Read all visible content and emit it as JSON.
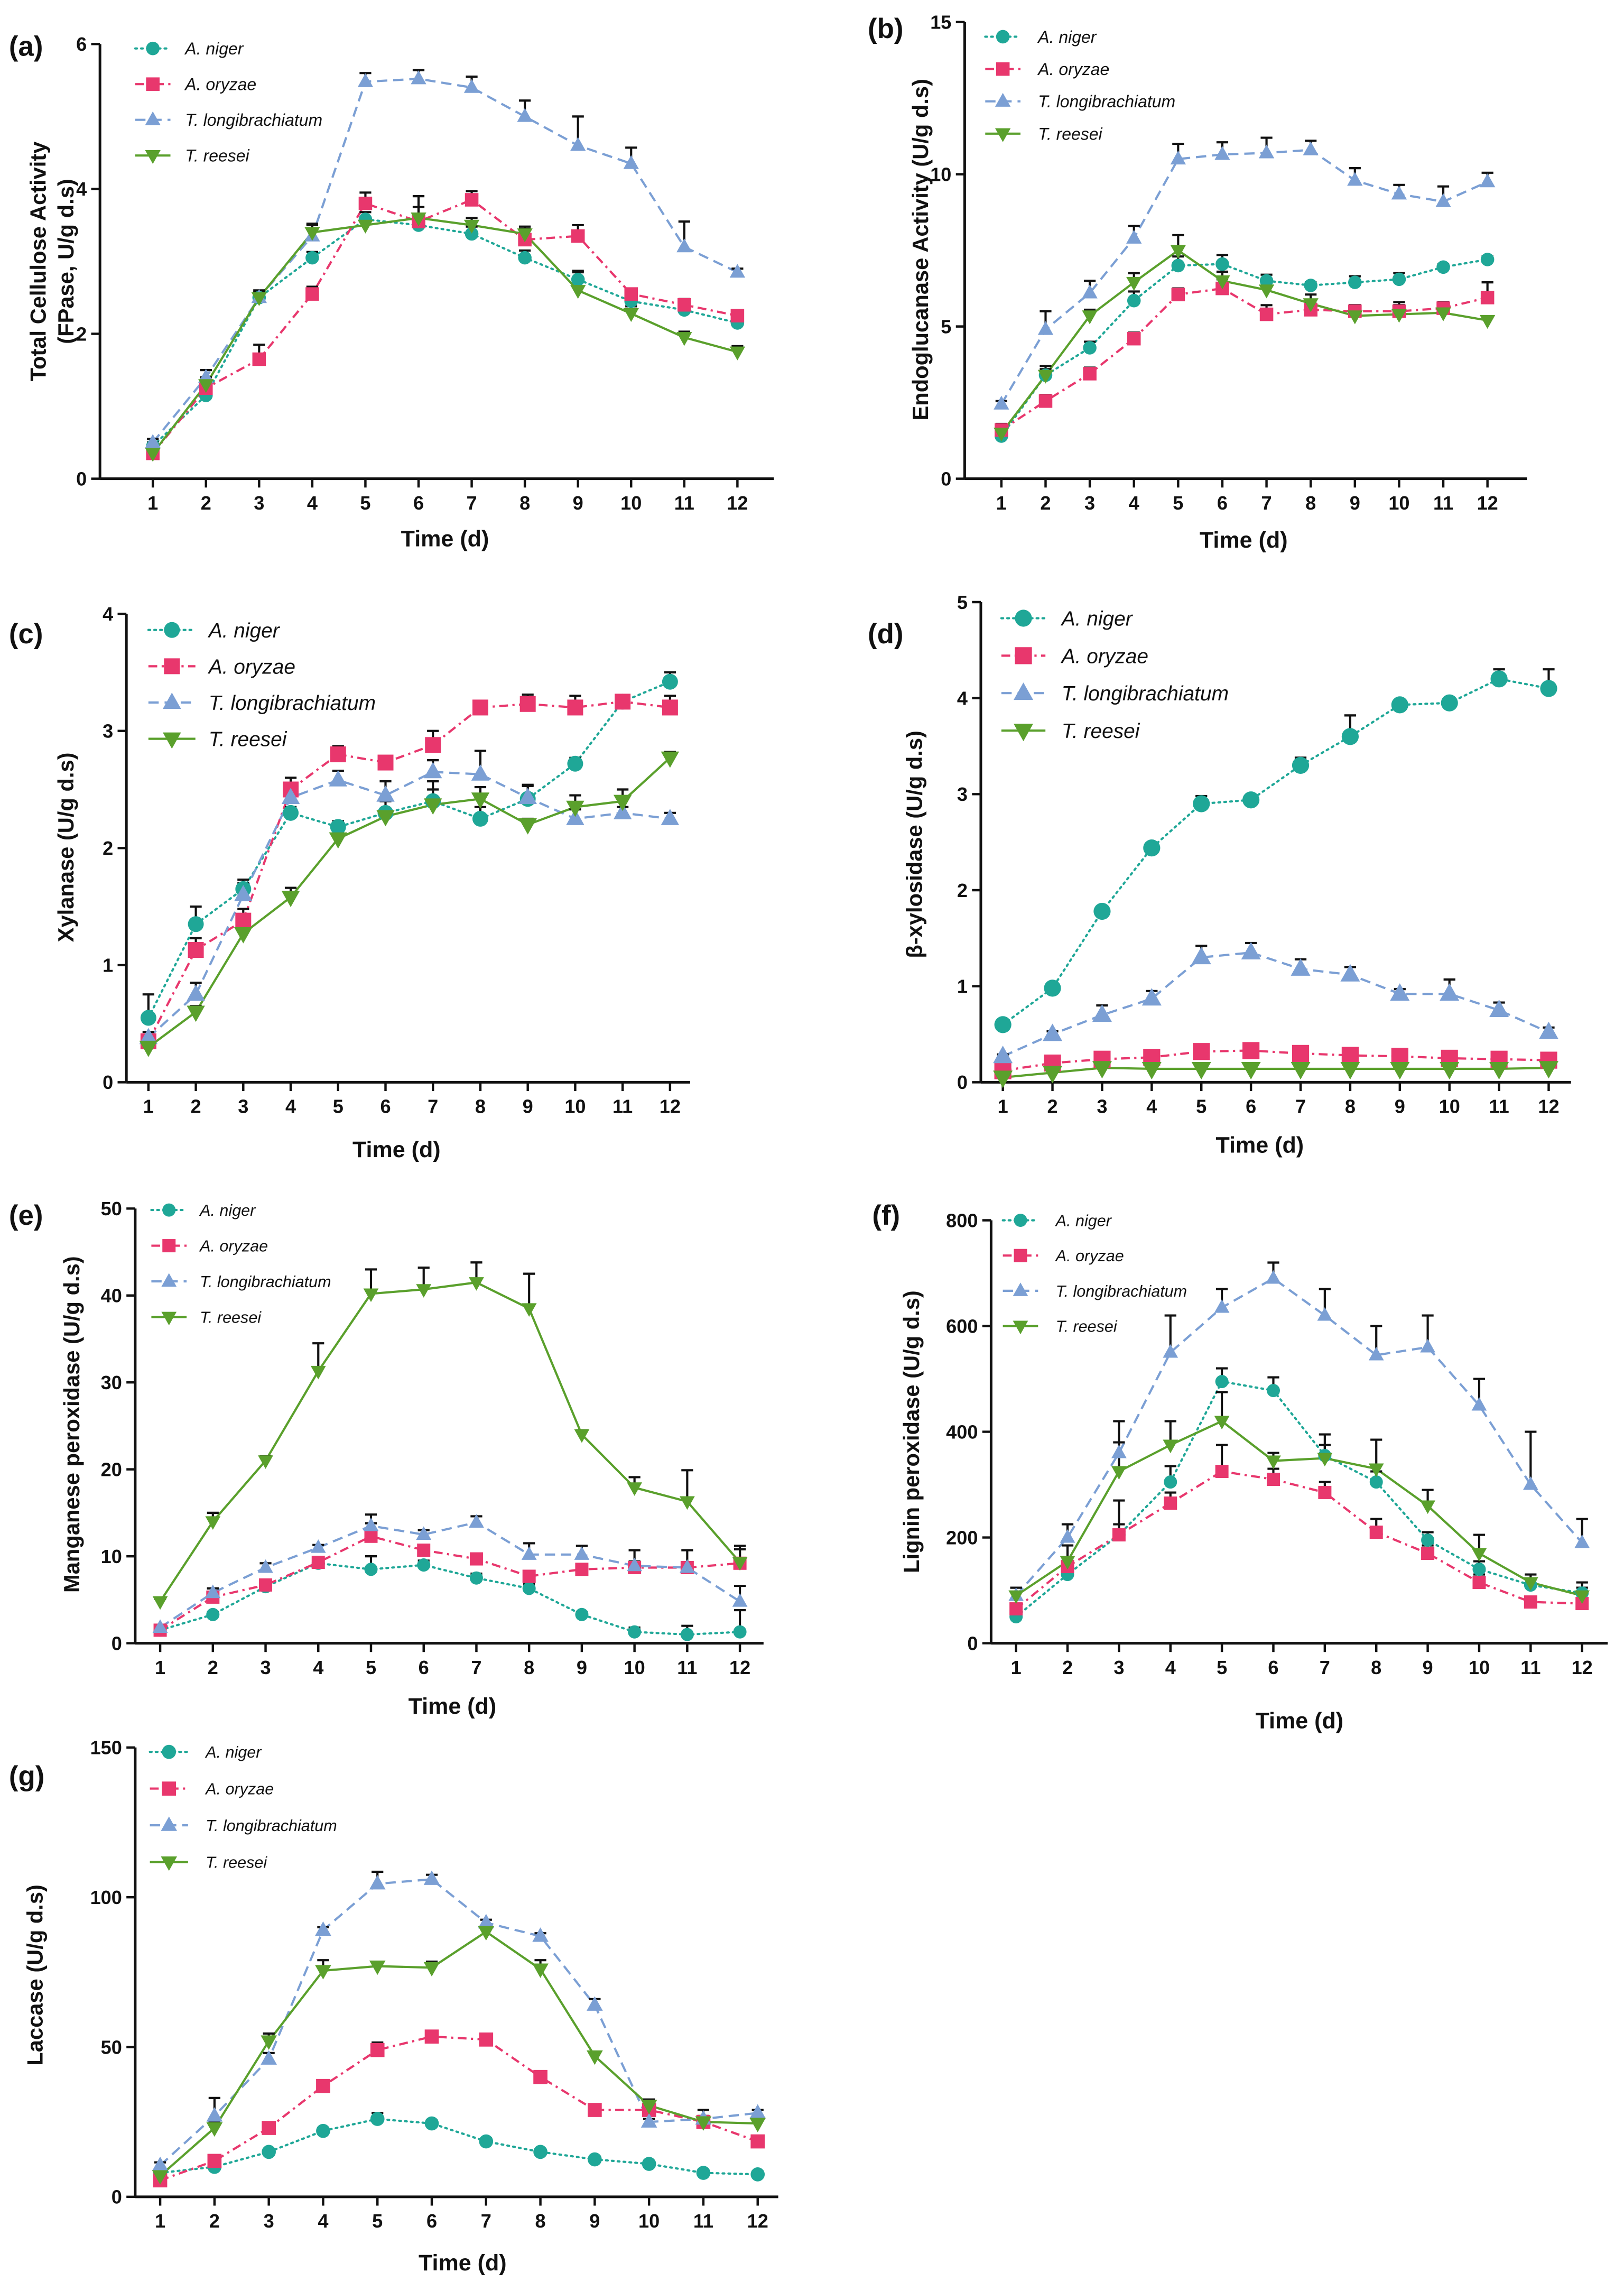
{
  "chart_data": [
    {
      "panel": "(a)",
      "type": "line",
      "xlabel": "Time (d)",
      "ylabel": [
        "Total Cellulose Activity",
        "(FPase, U/g d.s)"
      ],
      "x": [
        1,
        2,
        3,
        4,
        5,
        6,
        7,
        8,
        9,
        10,
        11,
        12
      ],
      "ylim": [
        0,
        6
      ],
      "yticks": [
        0,
        2,
        4,
        6
      ],
      "series": [
        {
          "name": "A. niger",
          "color": "#1fa797",
          "values": [
            0.45,
            1.15,
            2.5,
            3.05,
            3.58,
            3.5,
            3.38,
            3.05,
            2.75,
            2.45,
            2.33,
            2.15
          ],
          "errors": [
            0.05,
            0.1,
            0.08,
            0.08,
            0.1,
            0.1,
            0.1,
            0.1,
            0.12,
            0.1,
            0.08,
            0.08
          ]
        },
        {
          "name": "A. oryzae",
          "color": "#e8376d",
          "values": [
            0.35,
            1.25,
            1.65,
            2.55,
            3.8,
            3.55,
            3.85,
            3.3,
            3.35,
            2.55,
            2.4,
            2.25
          ],
          "errors": [
            0.05,
            0.25,
            0.2,
            0.1,
            0.15,
            0.2,
            0.12,
            0.15,
            0.15,
            0.05,
            0.08,
            0.05
          ]
        },
        {
          "name": "T. longibrachiatum",
          "color": "#7b9fd4",
          "values": [
            0.5,
            1.4,
            2.5,
            3.35,
            5.48,
            5.52,
            5.4,
            5.0,
            4.6,
            4.35,
            3.2,
            2.85
          ],
          "errors": [
            0.05,
            0.1,
            0.1,
            0.15,
            0.12,
            0.12,
            0.15,
            0.22,
            0.4,
            0.22,
            0.35,
            0.05
          ]
        },
        {
          "name": "T. reesei",
          "color": "#5aa02c",
          "values": [
            0.35,
            1.3,
            2.5,
            3.4,
            3.5,
            3.6,
            3.5,
            3.38,
            2.6,
            2.28,
            1.95,
            1.75
          ],
          "errors": [
            0.05,
            0.1,
            0.05,
            0.12,
            0.1,
            0.3,
            0.1,
            0.1,
            0.25,
            0.1,
            0.08,
            0.08
          ]
        }
      ]
    },
    {
      "panel": "(b)",
      "type": "line",
      "xlabel": "Time (d)",
      "ylabel": [
        "Endoglucanase Activity (U/g d.s)"
      ],
      "x": [
        1,
        2,
        3,
        4,
        5,
        6,
        7,
        8,
        9,
        10,
        11,
        12
      ],
      "ylim": [
        0,
        15
      ],
      "yticks": [
        0,
        5,
        10,
        15
      ],
      "series": [
        {
          "name": "A. niger",
          "color": "#1fa797",
          "values": [
            1.4,
            3.4,
            4.3,
            5.85,
            7.0,
            7.05,
            6.5,
            6.35,
            6.45,
            6.55,
            6.95,
            7.2
          ],
          "errors": [
            0.2,
            0.2,
            0.2,
            0.3,
            0.3,
            0.3,
            0.2,
            0.1,
            0.2,
            0.2,
            0.1,
            0.1
          ]
        },
        {
          "name": "A. oryzae",
          "color": "#e8376d",
          "values": [
            1.6,
            2.55,
            3.45,
            4.6,
            6.05,
            6.25,
            5.4,
            5.55,
            5.5,
            5.5,
            5.6,
            5.95
          ],
          "errors": [
            0.2,
            0.2,
            0.2,
            0.2,
            0.2,
            0.3,
            0.3,
            0.2,
            0.2,
            0.3,
            0.2,
            0.5
          ]
        },
        {
          "name": "T. longibrachiatum",
          "color": "#7b9fd4",
          "values": [
            2.45,
            4.9,
            6.1,
            7.9,
            10.5,
            10.65,
            10.7,
            10.8,
            9.8,
            9.35,
            9.1,
            9.75
          ],
          "errors": [
            0.1,
            0.6,
            0.4,
            0.4,
            0.5,
            0.4,
            0.5,
            0.3,
            0.4,
            0.3,
            0.5,
            0.3
          ]
        },
        {
          "name": "T. reesei",
          "color": "#5aa02c",
          "values": [
            1.5,
            3.4,
            5.35,
            6.45,
            7.5,
            6.5,
            6.2,
            5.75,
            5.35,
            5.4,
            5.45,
            5.2
          ],
          "errors": [
            0.2,
            0.3,
            0.2,
            0.3,
            0.5,
            0.3,
            0.3,
            0.3,
            0.2,
            0.3,
            0.2,
            0.1
          ]
        }
      ]
    },
    {
      "panel": "(c)",
      "type": "line",
      "xlabel": "Time (d)",
      "ylabel": [
        "Xylanase (U/g d.s)"
      ],
      "x": [
        1,
        2,
        3,
        4,
        5,
        6,
        7,
        8,
        9,
        10,
        11,
        12
      ],
      "ylim": [
        0,
        4
      ],
      "yticks": [
        0,
        1,
        2,
        3,
        4
      ],
      "series": [
        {
          "name": "A. niger",
          "color": "#1fa797",
          "values": [
            0.55,
            1.35,
            1.65,
            2.3,
            2.18,
            2.3,
            2.4,
            2.25,
            2.42,
            2.72,
            3.25,
            3.42
          ],
          "errors": [
            0.2,
            0.15,
            0.08,
            0.05,
            0.05,
            0.1,
            0.1,
            0.1,
            0.12,
            0.05,
            0.05,
            0.08
          ]
        },
        {
          "name": "A. oryzae",
          "color": "#e8376d",
          "values": [
            0.35,
            1.13,
            1.38,
            2.5,
            2.8,
            2.73,
            2.88,
            3.2,
            3.23,
            3.2,
            3.25,
            3.2
          ],
          "errors": [
            0.03,
            0.1,
            0.1,
            0.1,
            0.07,
            0.05,
            0.12,
            0.05,
            0.08,
            0.1,
            0.05,
            0.1
          ]
        },
        {
          "name": "T. longibrachiatum",
          "color": "#7b9fd4",
          "values": [
            0.38,
            0.75,
            1.6,
            2.43,
            2.58,
            2.45,
            2.65,
            2.63,
            2.43,
            2.25,
            2.3,
            2.25
          ],
          "errors": [
            0.05,
            0.1,
            0.1,
            0.1,
            0.08,
            0.12,
            0.1,
            0.2,
            0.1,
            0.08,
            0.05,
            0.05
          ]
        },
        {
          "name": "T. reesei",
          "color": "#5aa02c",
          "values": [
            0.3,
            0.6,
            1.27,
            1.58,
            2.08,
            2.27,
            2.37,
            2.42,
            2.2,
            2.35,
            2.4,
            2.77
          ],
          "errors": [
            0.05,
            0.05,
            0.05,
            0.08,
            0.05,
            0.05,
            0.2,
            0.1,
            0.05,
            0.1,
            0.1,
            0.05
          ]
        }
      ]
    },
    {
      "panel": "(d)",
      "type": "line",
      "xlabel": "Time (d)",
      "ylabel": [
        "β-xylosidase (U/g d.s)"
      ],
      "x": [
        1,
        2,
        3,
        4,
        5,
        6,
        7,
        8,
        9,
        10,
        11,
        12
      ],
      "ylim": [
        0,
        5
      ],
      "yticks": [
        0,
        1,
        2,
        3,
        4,
        5
      ],
      "series": [
        {
          "name": "A. niger",
          "color": "#1fa797",
          "values": [
            0.6,
            0.98,
            1.78,
            2.44,
            2.9,
            2.94,
            3.3,
            3.6,
            3.93,
            3.95,
            4.2,
            4.1
          ],
          "errors": [
            0.03,
            0.03,
            0.03,
            0.05,
            0.08,
            0.03,
            0.08,
            0.22,
            0.03,
            0.03,
            0.1,
            0.2
          ]
        },
        {
          "name": "A. oryzae",
          "color": "#e8376d",
          "values": [
            0.12,
            0.2,
            0.24,
            0.26,
            0.32,
            0.33,
            0.3,
            0.28,
            0.27,
            0.25,
            0.24,
            0.23
          ],
          "errors": [
            0.02,
            0.02,
            0.02,
            0.03,
            0.02,
            0.02,
            0.02,
            0.02,
            0.02,
            0.02,
            0.02,
            0.02
          ]
        },
        {
          "name": "T. longibrachiatum",
          "color": "#7b9fd4",
          "values": [
            0.27,
            0.5,
            0.7,
            0.87,
            1.3,
            1.35,
            1.18,
            1.12,
            0.92,
            0.92,
            0.75,
            0.52
          ],
          "errors": [
            0.02,
            0.03,
            0.1,
            0.08,
            0.12,
            0.1,
            0.1,
            0.08,
            0.05,
            0.15,
            0.08,
            0.05
          ]
        },
        {
          "name": "T. reesei",
          "color": "#5aa02c",
          "values": [
            0.05,
            0.1,
            0.15,
            0.14,
            0.14,
            0.14,
            0.14,
            0.14,
            0.14,
            0.14,
            0.14,
            0.15
          ],
          "errors": [
            0.01,
            0.02,
            0.02,
            0.02,
            0.02,
            0.02,
            0.02,
            0.02,
            0.02,
            0.02,
            0.02,
            0.02
          ]
        }
      ]
    },
    {
      "panel": "(e)",
      "type": "line",
      "xlabel": "Time (d)",
      "ylabel": [
        "Manganese peroxidase (U/g d.s)"
      ],
      "x": [
        1,
        2,
        3,
        4,
        5,
        6,
        7,
        8,
        9,
        10,
        11,
        12
      ],
      "ylim": [
        0,
        50
      ],
      "yticks": [
        0,
        10,
        20,
        30,
        40,
        50
      ],
      "series": [
        {
          "name": "A. niger",
          "color": "#1fa797",
          "values": [
            1.5,
            3.3,
            6.5,
            9.2,
            8.5,
            9.0,
            7.5,
            6.3,
            3.3,
            1.3,
            1.0,
            1.3
          ],
          "errors": [
            0.3,
            0.3,
            0.5,
            0.3,
            1.5,
            0.5,
            0.5,
            0.5,
            0.3,
            0.5,
            1.0,
            2.5
          ]
        },
        {
          "name": "A. oryzae",
          "color": "#e8376d",
          "values": [
            1.5,
            5.3,
            6.7,
            9.3,
            12.3,
            10.7,
            9.7,
            7.7,
            8.5,
            8.7,
            8.7,
            9.2
          ],
          "errors": [
            0.3,
            1.0,
            0.5,
            0.5,
            1.5,
            0.5,
            0.5,
            0.5,
            0.5,
            2.0,
            2.0,
            2.0
          ]
        },
        {
          "name": "T. longibrachiatum",
          "color": "#7b9fd4",
          "values": [
            1.8,
            5.8,
            8.7,
            11.0,
            13.5,
            12.5,
            13.9,
            10.2,
            10.2,
            8.9,
            8.7,
            4.8
          ],
          "errors": [
            0.3,
            0.5,
            0.5,
            0.3,
            1.3,
            0.5,
            0.7,
            1.3,
            1.0,
            0.5,
            0.5,
            1.8
          ]
        },
        {
          "name": "T. reesei",
          "color": "#5aa02c",
          "values": [
            4.8,
            14.0,
            21.0,
            31.3,
            40.2,
            40.7,
            41.5,
            38.5,
            24.0,
            17.9,
            16.3,
            9.3
          ],
          "errors": [
            0.3,
            1.0,
            0.5,
            3.2,
            2.8,
            2.5,
            2.3,
            4.0,
            0.5,
            1.2,
            3.6,
            1.5
          ]
        }
      ]
    },
    {
      "panel": "(f)",
      "type": "line",
      "xlabel": "Time (d)",
      "ylabel": [
        "Lignin peroxidase (U/g d.s)"
      ],
      "x": [
        1,
        2,
        3,
        4,
        5,
        6,
        7,
        8,
        9,
        10,
        11,
        12
      ],
      "ylim": [
        0,
        800
      ],
      "yticks": [
        0,
        200,
        400,
        600,
        800
      ],
      "series": [
        {
          "name": "A. niger",
          "color": "#1fa797",
          "values": [
            50,
            130,
            205,
            305,
            495,
            478,
            355,
            305,
            195,
            140,
            110,
            95
          ],
          "errors": [
            10,
            15,
            20,
            30,
            25,
            25,
            20,
            20,
            15,
            15,
            10,
            10
          ]
        },
        {
          "name": "A. oryzae",
          "color": "#e8376d",
          "values": [
            65,
            145,
            205,
            265,
            325,
            310,
            285,
            210,
            170,
            115,
            78,
            75
          ],
          "errors": [
            10,
            15,
            65,
            20,
            50,
            20,
            20,
            25,
            15,
            15,
            10,
            10
          ]
        },
        {
          "name": "T. longibrachiatum",
          "color": "#7b9fd4",
          "values": [
            90,
            200,
            360,
            550,
            635,
            690,
            620,
            545,
            560,
            450,
            300,
            190
          ],
          "errors": [
            15,
            25,
            60,
            70,
            35,
            30,
            50,
            55,
            60,
            50,
            100,
            45
          ]
        },
        {
          "name": "T. reesei",
          "color": "#5aa02c",
          "values": [
            90,
            155,
            325,
            375,
            420,
            345,
            350,
            330,
            260,
            170,
            115,
            90
          ],
          "errors": [
            15,
            30,
            55,
            45,
            55,
            15,
            45,
            55,
            30,
            35,
            15,
            25
          ]
        }
      ]
    },
    {
      "panel": "(g)",
      "type": "line",
      "xlabel": "Time (d)",
      "ylabel": [
        "Laccase (U/g d.s)"
      ],
      "x": [
        1,
        2,
        3,
        4,
        5,
        6,
        7,
        8,
        9,
        10,
        11,
        12
      ],
      "ylim": [
        0,
        150
      ],
      "yticks": [
        0,
        50,
        100,
        150
      ],
      "series": [
        {
          "name": "A. niger",
          "color": "#1fa797",
          "values": [
            8,
            10,
            15,
            22,
            26,
            24.5,
            18.5,
            15,
            12.5,
            11,
            8,
            7.5
          ],
          "errors": [
            1,
            1,
            1,
            1,
            2,
            1,
            1,
            1,
            1,
            1,
            1,
            1
          ]
        },
        {
          "name": "A. oryzae",
          "color": "#e8376d",
          "values": [
            5.5,
            12,
            23,
            37,
            49,
            53.5,
            52.5,
            40,
            29,
            29,
            25,
            18.5
          ],
          "errors": [
            1,
            1,
            1,
            1,
            2.5,
            1.5,
            1,
            1,
            1,
            1.5,
            1,
            1
          ]
        },
        {
          "name": "T. longibrachiatum",
          "color": "#7b9fd4",
          "values": [
            10.5,
            27,
            46,
            89,
            104.5,
            106,
            91.5,
            87,
            64,
            25,
            26,
            28
          ],
          "errors": [
            1,
            6,
            2,
            1,
            4,
            1.5,
            1,
            1,
            2,
            1,
            1,
            1
          ]
        },
        {
          "name": "T. reesei",
          "color": "#5aa02c",
          "values": [
            7,
            23,
            52,
            75.5,
            77,
            76.5,
            88.5,
            76,
            47,
            30.5,
            25,
            24.5
          ],
          "errors": [
            1,
            2,
            2.5,
            3.5,
            1,
            2,
            1,
            3,
            1,
            2,
            4,
            2
          ]
        }
      ]
    }
  ]
}
